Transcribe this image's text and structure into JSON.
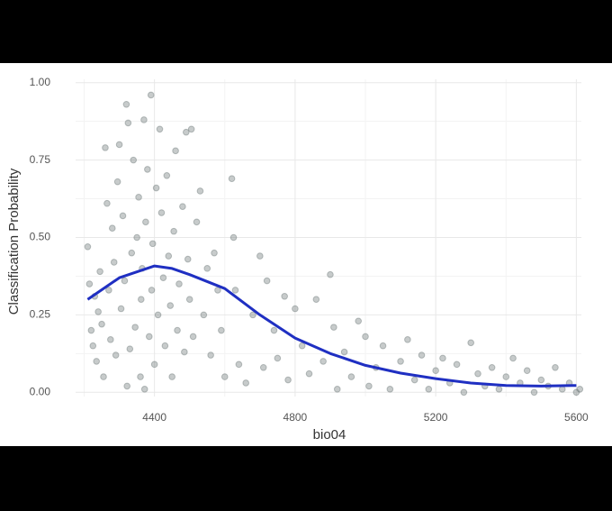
{
  "chart_data": {
    "type": "scatter",
    "x_label": "bio04",
    "y_label": "Classification Probability",
    "xlim": [
      4150,
      5640
    ],
    "ylim": [
      -0.04,
      1.04
    ],
    "xticks": [
      4400,
      4800,
      5200,
      5600
    ],
    "yticks": [
      {
        "value": 0,
        "label": "0.00"
      },
      {
        "value": 0.25,
        "label": "0.25"
      },
      {
        "value": 0.5,
        "label": "0.50"
      },
      {
        "value": 0.75,
        "label": "0.75"
      },
      {
        "value": 1,
        "label": "1.00"
      }
    ],
    "grid": true,
    "color": "#5f6b6b",
    "x": [
      4210,
      4215,
      4220,
      4225,
      4230,
      4235,
      4240,
      4245,
      4250,
      4255,
      4260,
      4265,
      4270,
      4275,
      4280,
      4285,
      4290,
      4295,
      4300,
      4305,
      4310,
      4315,
      4320,
      4322,
      4325,
      4330,
      4335,
      4340,
      4345,
      4350,
      4355,
      4360,
      4362,
      4365,
      4370,
      4372,
      4375,
      4380,
      4385,
      4390,
      4392,
      4395,
      4400,
      4405,
      4410,
      4415,
      4420,
      4425,
      4430,
      4435,
      4440,
      4445,
      4450,
      4455,
      4460,
      4465,
      4470,
      4480,
      4485,
      4490,
      4495,
      4500,
      4505,
      4510,
      4520,
      4530,
      4540,
      4550,
      4560,
      4570,
      4580,
      4590,
      4600,
      4620,
      4625,
      4630,
      4640,
      4660,
      4680,
      4700,
      4710,
      4720,
      4740,
      4750,
      4770,
      4780,
      4800,
      4820,
      4840,
      4860,
      4880,
      4900,
      4910,
      4920,
      4940,
      4960,
      4980,
      5000,
      5010,
      5030,
      5050,
      5070,
      5100,
      5120,
      5140,
      5160,
      5180,
      5200,
      5220,
      5240,
      5260,
      5280,
      5300,
      5320,
      5340,
      5360,
      5380,
      5400,
      5420,
      5440,
      5460,
      5480,
      5500,
      5520,
      5540,
      5560,
      5580,
      5600,
      5610
    ],
    "values": [
      0.47,
      0.35,
      0.2,
      0.15,
      0.31,
      0.1,
      0.26,
      0.39,
      0.22,
      0.05,
      0.79,
      0.61,
      0.33,
      0.17,
      0.53,
      0.42,
      0.12,
      0.68,
      0.8,
      0.27,
      0.57,
      0.36,
      0.93,
      0.02,
      0.87,
      0.14,
      0.45,
      0.75,
      0.21,
      0.5,
      0.63,
      0.05,
      0.3,
      0.4,
      0.88,
      0.01,
      0.55,
      0.72,
      0.18,
      0.96,
      0.33,
      0.48,
      0.09,
      0.66,
      0.25,
      0.85,
      0.58,
      0.37,
      0.15,
      0.7,
      0.44,
      0.28,
      0.05,
      0.52,
      0.78,
      0.2,
      0.35,
      0.6,
      0.13,
      0.84,
      0.43,
      0.3,
      0.85,
      0.18,
      0.55,
      0.65,
      0.25,
      0.4,
      0.12,
      0.45,
      0.33,
      0.2,
      0.05,
      0.69,
      0.5,
      0.33,
      0.09,
      0.03,
      0.25,
      0.44,
      0.08,
      0.36,
      0.2,
      0.11,
      0.31,
      0.04,
      0.27,
      0.15,
      0.06,
      0.3,
      0.1,
      0.38,
      0.21,
      0.01,
      0.13,
      0.05,
      0.23,
      0.18,
      0.02,
      0.08,
      0.15,
      0.01,
      0.1,
      0.17,
      0.04,
      0.12,
      0.01,
      0.07,
      0.11,
      0.03,
      0.09,
      0.0,
      0.16,
      0.06,
      0.02,
      0.08,
      0.01,
      0.05,
      0.11,
      0.03,
      0.07,
      0.0,
      0.04,
      0.02,
      0.08,
      0.01,
      0.03,
      0.0,
      0.01
    ],
    "smooth": {
      "color": "#1f2fc2",
      "x": [
        4210,
        4300,
        4400,
        4450,
        4500,
        4600,
        4700,
        4800,
        4900,
        5000,
        5100,
        5200,
        5300,
        5400,
        5500,
        5600
      ],
      "values": [
        0.3,
        0.37,
        0.408,
        0.4,
        0.38,
        0.335,
        0.25,
        0.175,
        0.125,
        0.087,
        0.062,
        0.044,
        0.03,
        0.022,
        0.02,
        0.022
      ]
    }
  }
}
